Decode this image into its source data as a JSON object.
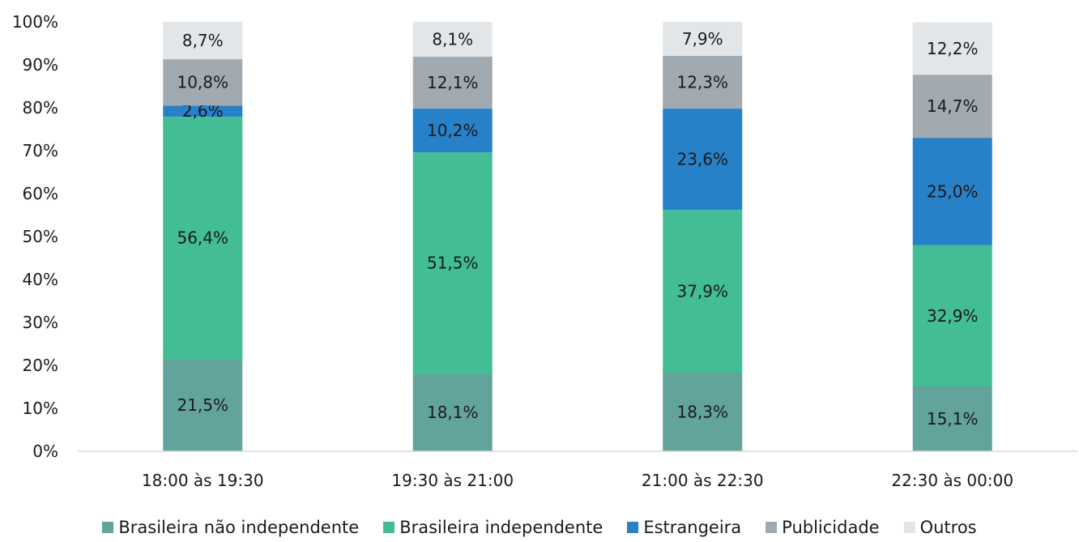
{
  "chart_data": {
    "type": "bar",
    "stacked": true,
    "categories": [
      "18:00 às 19:30",
      "19:30 às 21:00",
      "21:00 às 22:30",
      "22:30 às 00:00"
    ],
    "series": [
      {
        "name": "Brasileira não independente",
        "color": "#62a39b",
        "values": [
          21.5,
          18.1,
          18.3,
          15.1
        ],
        "labels": [
          "21,5%",
          "18,1%",
          "18,3%",
          "15,1%"
        ]
      },
      {
        "name": "Brasileira independente",
        "color": "#43bd96",
        "values": [
          56.4,
          51.5,
          37.9,
          32.9
        ],
        "labels": [
          "56,4%",
          "51,5%",
          "37,9%",
          "32,9%"
        ]
      },
      {
        "name": "Estrangeira",
        "color": "#2781c9",
        "values": [
          2.6,
          10.2,
          23.6,
          25.0
        ],
        "labels": [
          "2,6%",
          "10,2%",
          "23,6%",
          "25,0%"
        ]
      },
      {
        "name": "Publicidade",
        "color": "#a1a9b1",
        "values": [
          10.8,
          12.1,
          12.3,
          14.7
        ],
        "labels": [
          "10,8%",
          "12,1%",
          "12,3%",
          "14,7%"
        ]
      },
      {
        "name": "Outros",
        "color": "#e3e6e9",
        "values": [
          8.7,
          8.1,
          7.9,
          12.2
        ],
        "labels": [
          "8,7%",
          "8,1%",
          "7,9%",
          "12,2%"
        ]
      }
    ],
    "yticks": [
      "0%",
      "10%",
      "20%",
      "30%",
      "40%",
      "50%",
      "60%",
      "70%",
      "80%",
      "90%",
      "100%"
    ],
    "ylim": [
      0,
      100
    ],
    "grid": false,
    "legend": "bottom"
  }
}
